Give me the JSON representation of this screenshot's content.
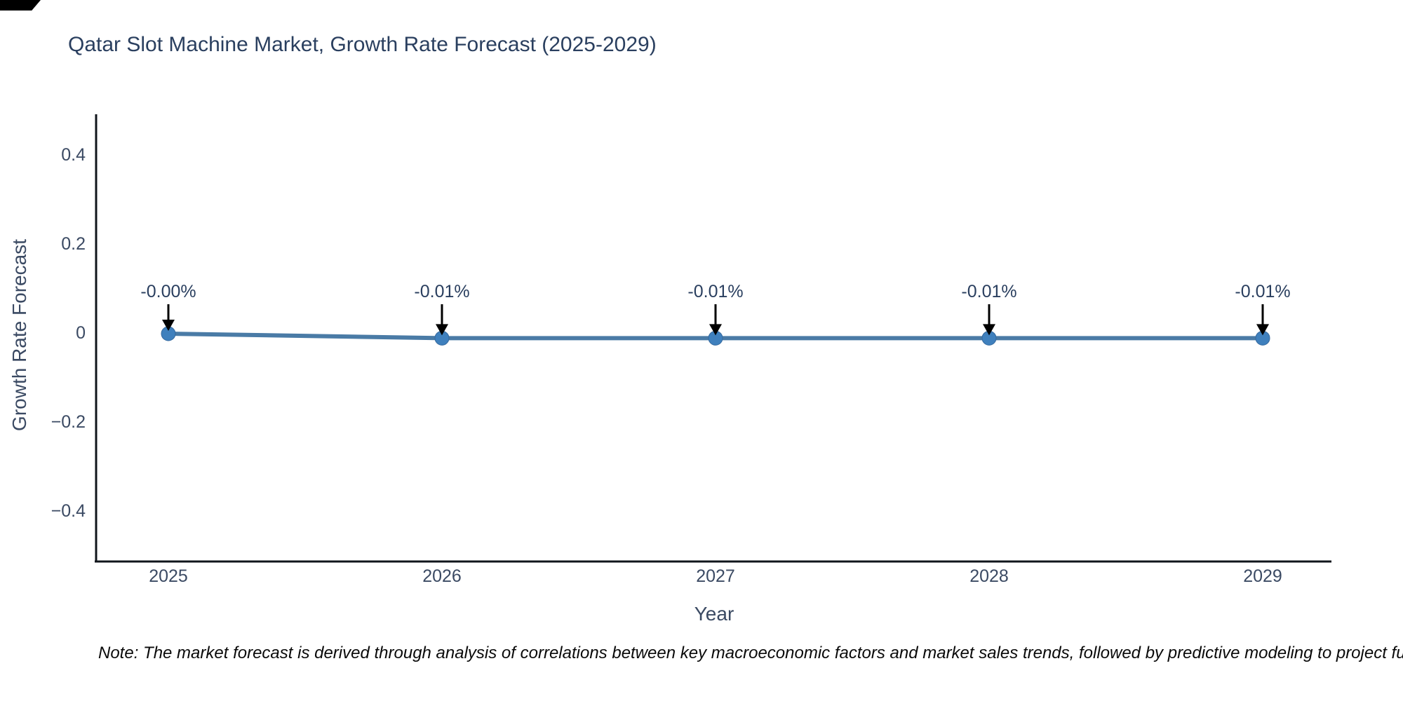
{
  "chart_data": {
    "type": "line",
    "title": "Qatar Slot Machine Market, Growth Rate Forecast (2025-2029)",
    "xlabel": "Year",
    "ylabel": "Growth Rate Forecast",
    "x": [
      2025,
      2026,
      2027,
      2028,
      2029
    ],
    "series": [
      {
        "name": "Growth Rate Forecast",
        "values": [
          -0.0,
          -0.01,
          -0.01,
          -0.01,
          -0.01
        ],
        "unit": "%"
      }
    ],
    "point_labels": [
      "-0.00%",
      "-0.01%",
      "-0.01%",
      "-0.01%",
      "-0.01%"
    ],
    "xtick_labels": [
      "2025",
      "2026",
      "2027",
      "2028",
      "2029"
    ],
    "yticks": [
      0.4,
      0.2,
      0,
      -0.2,
      -0.4
    ],
    "ytick_labels": [
      "0.4",
      "0.2",
      "0",
      "−0.2",
      "−0.4"
    ],
    "ylim": [
      -0.5,
      0.5
    ],
    "grid": false,
    "legend": "none",
    "annotation_arrows": "black arrows pointing down from each label to its data point",
    "colors": {
      "line": "#4a7ba6",
      "marker": "#3f80bd",
      "marker_edge": "#35699e",
      "arrow": "#000000",
      "axis_line": "#10151b",
      "title_text": "#2a3f5f",
      "tick_text": "#3b4a63"
    },
    "note": "Note: The market forecast is derived through analysis of correlations between key macroeconomic factors and market sales trends, followed by predictive modeling to project future sales."
  }
}
